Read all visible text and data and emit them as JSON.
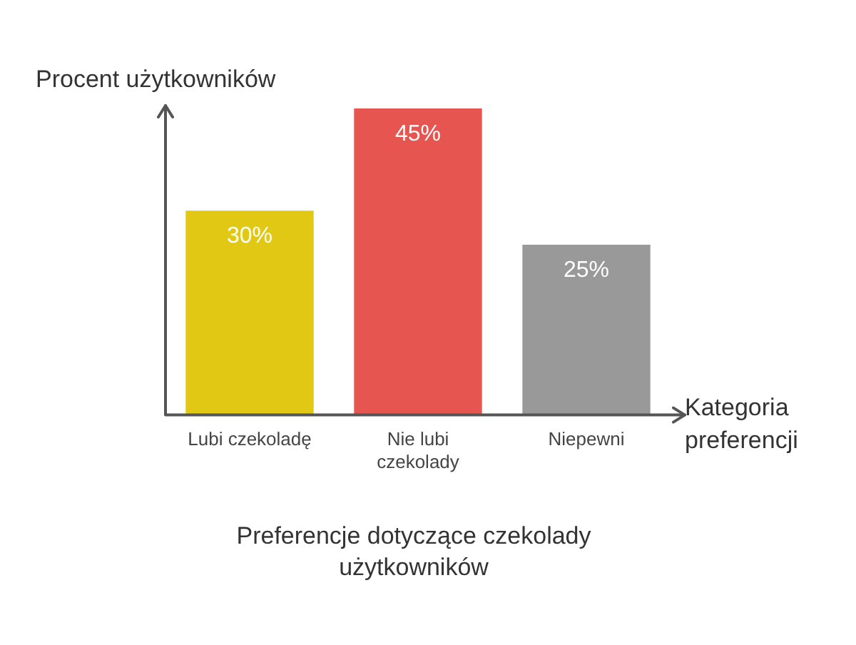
{
  "chart_data": {
    "type": "bar",
    "title": "Preferencje dotyczące czekolady użytkowników",
    "xlabel": "Kategoria preferencji",
    "ylabel": "Procent użytkowników",
    "categories": [
      "Lubi czekoladę",
      "Nie lubi czekolady",
      "Niepewni"
    ],
    "values": [
      30,
      45,
      25
    ],
    "colors": [
      "#e0c814",
      "#e65550",
      "#999999"
    ],
    "value_labels": [
      "30%",
      "45%",
      "25%"
    ]
  }
}
